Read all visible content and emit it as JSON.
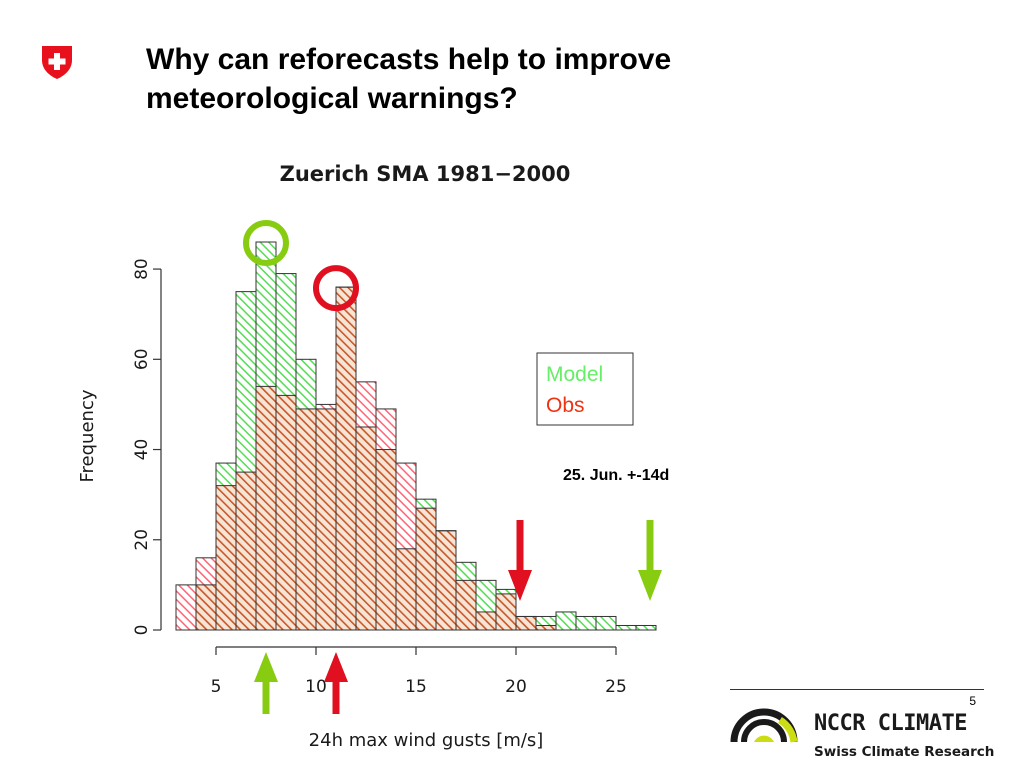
{
  "slide": {
    "title": "Why can reforecasts help to improve meteorological warnings?",
    "page_number": "5"
  },
  "logos": {
    "swiss_flag_icon": "swiss-cross-icon",
    "nccr_name": "NCCR CLIMATE",
    "nccr_subtitle": "Swiss Climate Research",
    "nccr_icon": "nccr-arc-icon"
  },
  "colors": {
    "model": "#66ee66",
    "obs": "#ee3311",
    "overlap": "#c8572a",
    "marker_green": "#88cc11",
    "marker_red": "#e01020"
  },
  "chart_data": {
    "type": "bar",
    "title": "Zuerich SMA 1981−2000",
    "xlabel": "24h max wind gusts [m/s]",
    "ylabel": "Frequency",
    "xlim": [
      3,
      27
    ],
    "ylim": [
      0,
      86
    ],
    "xticks": [
      5,
      10,
      15,
      20,
      25
    ],
    "yticks": [
      0,
      20,
      40,
      60,
      80
    ],
    "bin_width": 1,
    "bin_starts": [
      3,
      4,
      5,
      6,
      7,
      8,
      9,
      10,
      11,
      12,
      13,
      14,
      15,
      16,
      17,
      18,
      19,
      20,
      21,
      22,
      23,
      24,
      25,
      26
    ],
    "series": [
      {
        "name": "Model",
        "values": [
          0,
          10,
          37,
          75,
          86,
          79,
          60,
          49,
          76,
          45,
          40,
          18,
          29,
          22,
          15,
          11,
          9,
          3,
          3,
          4,
          3,
          3,
          1,
          1
        ]
      },
      {
        "name": "Obs",
        "values": [
          10,
          16,
          32,
          35,
          54,
          52,
          49,
          50,
          76,
          55,
          49,
          37,
          27,
          22,
          11,
          4,
          8,
          3,
          1,
          0,
          0,
          0,
          0,
          0
        ]
      }
    ],
    "legend": {
      "placement": "right",
      "entries": [
        "Model",
        "Obs"
      ]
    },
    "annotation": "25. Jun. +-14d",
    "markers": {
      "circles": [
        {
          "series": "Model",
          "x": 7.5,
          "y": 86
        },
        {
          "series": "Obs",
          "x": 11,
          "y": 76
        }
      ],
      "up_arrows": [
        {
          "series": "Model",
          "x": 7.5
        },
        {
          "series": "Obs",
          "x": 11
        }
      ],
      "down_arrows": [
        {
          "series": "Obs",
          "x": 20.2
        },
        {
          "series": "Model",
          "x": 26.7
        }
      ]
    }
  }
}
